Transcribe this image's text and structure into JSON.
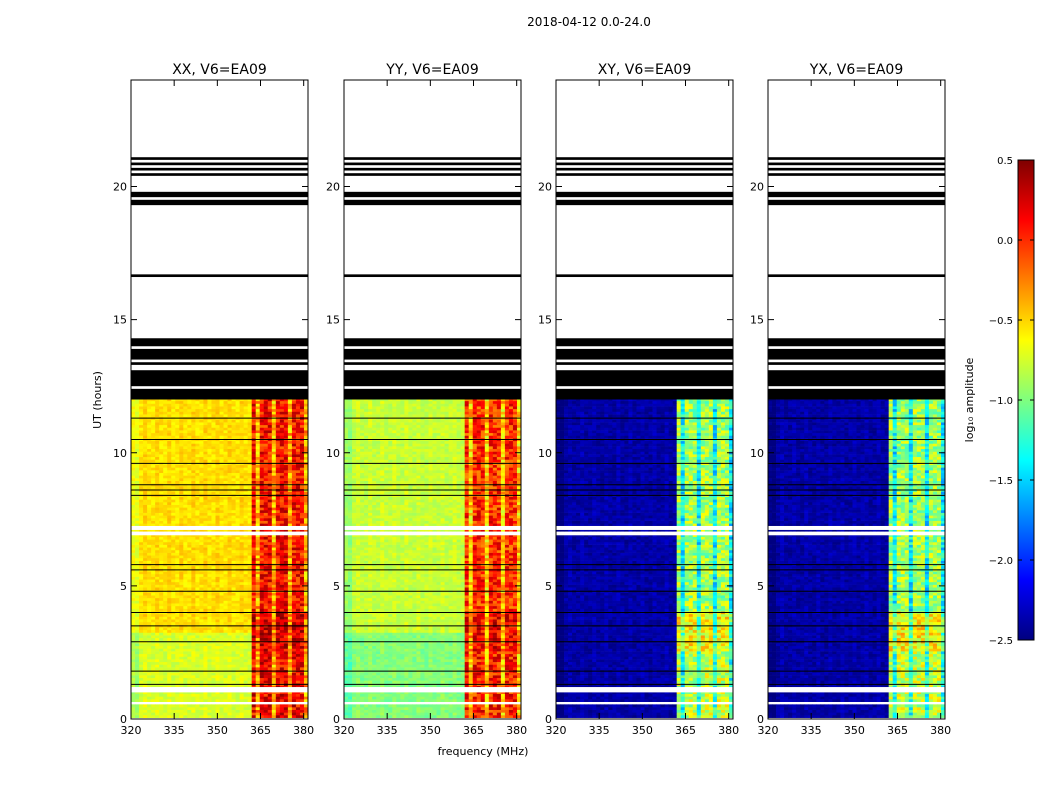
{
  "title": "2018-04-12 0.0-24.0",
  "xlabel": "frequency (MHz)",
  "ylabel": "UT (hours)",
  "colorbar": {
    "label": "log₁₀ amplitude",
    "vmin": -2.5,
    "vmax": 0.5,
    "ticks": [
      "0.5",
      "0.0",
      "−0.5",
      "−1.0",
      "−1.5",
      "−2.0",
      "−2.5"
    ],
    "tick_values": [
      0.5,
      0.0,
      -0.5,
      -1.0,
      -1.5,
      -2.0,
      -2.5
    ],
    "colormap": [
      "#00007f",
      "#0000ff",
      "#007fff",
      "#00ffff",
      "#7fff7f",
      "#ffff00",
      "#ff7f00",
      "#ff0000",
      "#7f0000"
    ]
  },
  "chart_data": {
    "type": "heatmap",
    "title": "2018-04-12 0.0-24.0",
    "xlabel": "frequency (MHz)",
    "ylabel": "UT (hours)",
    "xlim": [
      320,
      381.5
    ],
    "ylim": [
      0,
      24
    ],
    "xticks": [
      "320",
      "335",
      "350",
      "365",
      "380"
    ],
    "xtick_values": [
      320,
      335,
      350,
      365,
      380
    ],
    "yticks": [
      "0",
      "5",
      "10",
      "15",
      "20"
    ],
    "ytick_values": [
      0,
      5,
      10,
      15,
      20
    ],
    "data_time_range": [
      0.05,
      12.0
    ],
    "rfi_band_mhz": [
      361.5,
      381.0
    ],
    "flagged_time_bands_hours": [
      [
        12.0,
        12.4
      ],
      [
        12.5,
        13.1
      ],
      [
        13.3,
        13.4
      ],
      [
        13.5,
        13.9
      ],
      [
        14.0,
        14.3
      ],
      [
        16.6,
        16.7
      ],
      [
        19.3,
        19.5
      ],
      [
        19.6,
        19.8
      ],
      [
        20.4,
        20.5
      ],
      [
        20.6,
        20.7
      ],
      [
        20.8,
        20.9
      ],
      [
        21.0,
        21.1
      ]
    ],
    "panels": [
      {
        "title": "XX, V6=EA09",
        "pol": "XX",
        "base_level": -0.55,
        "band_level": 0.1
      },
      {
        "title": "YY, V6=EA09",
        "pol": "YY",
        "base_level": -0.8,
        "band_level": 0.0
      },
      {
        "title": "XY, V6=EA09",
        "pol": "XY",
        "base_level": -2.4,
        "band_level": -0.9
      },
      {
        "title": "YX, V6=EA09",
        "pol": "YX",
        "base_level": -2.4,
        "band_level": -0.9
      }
    ]
  }
}
